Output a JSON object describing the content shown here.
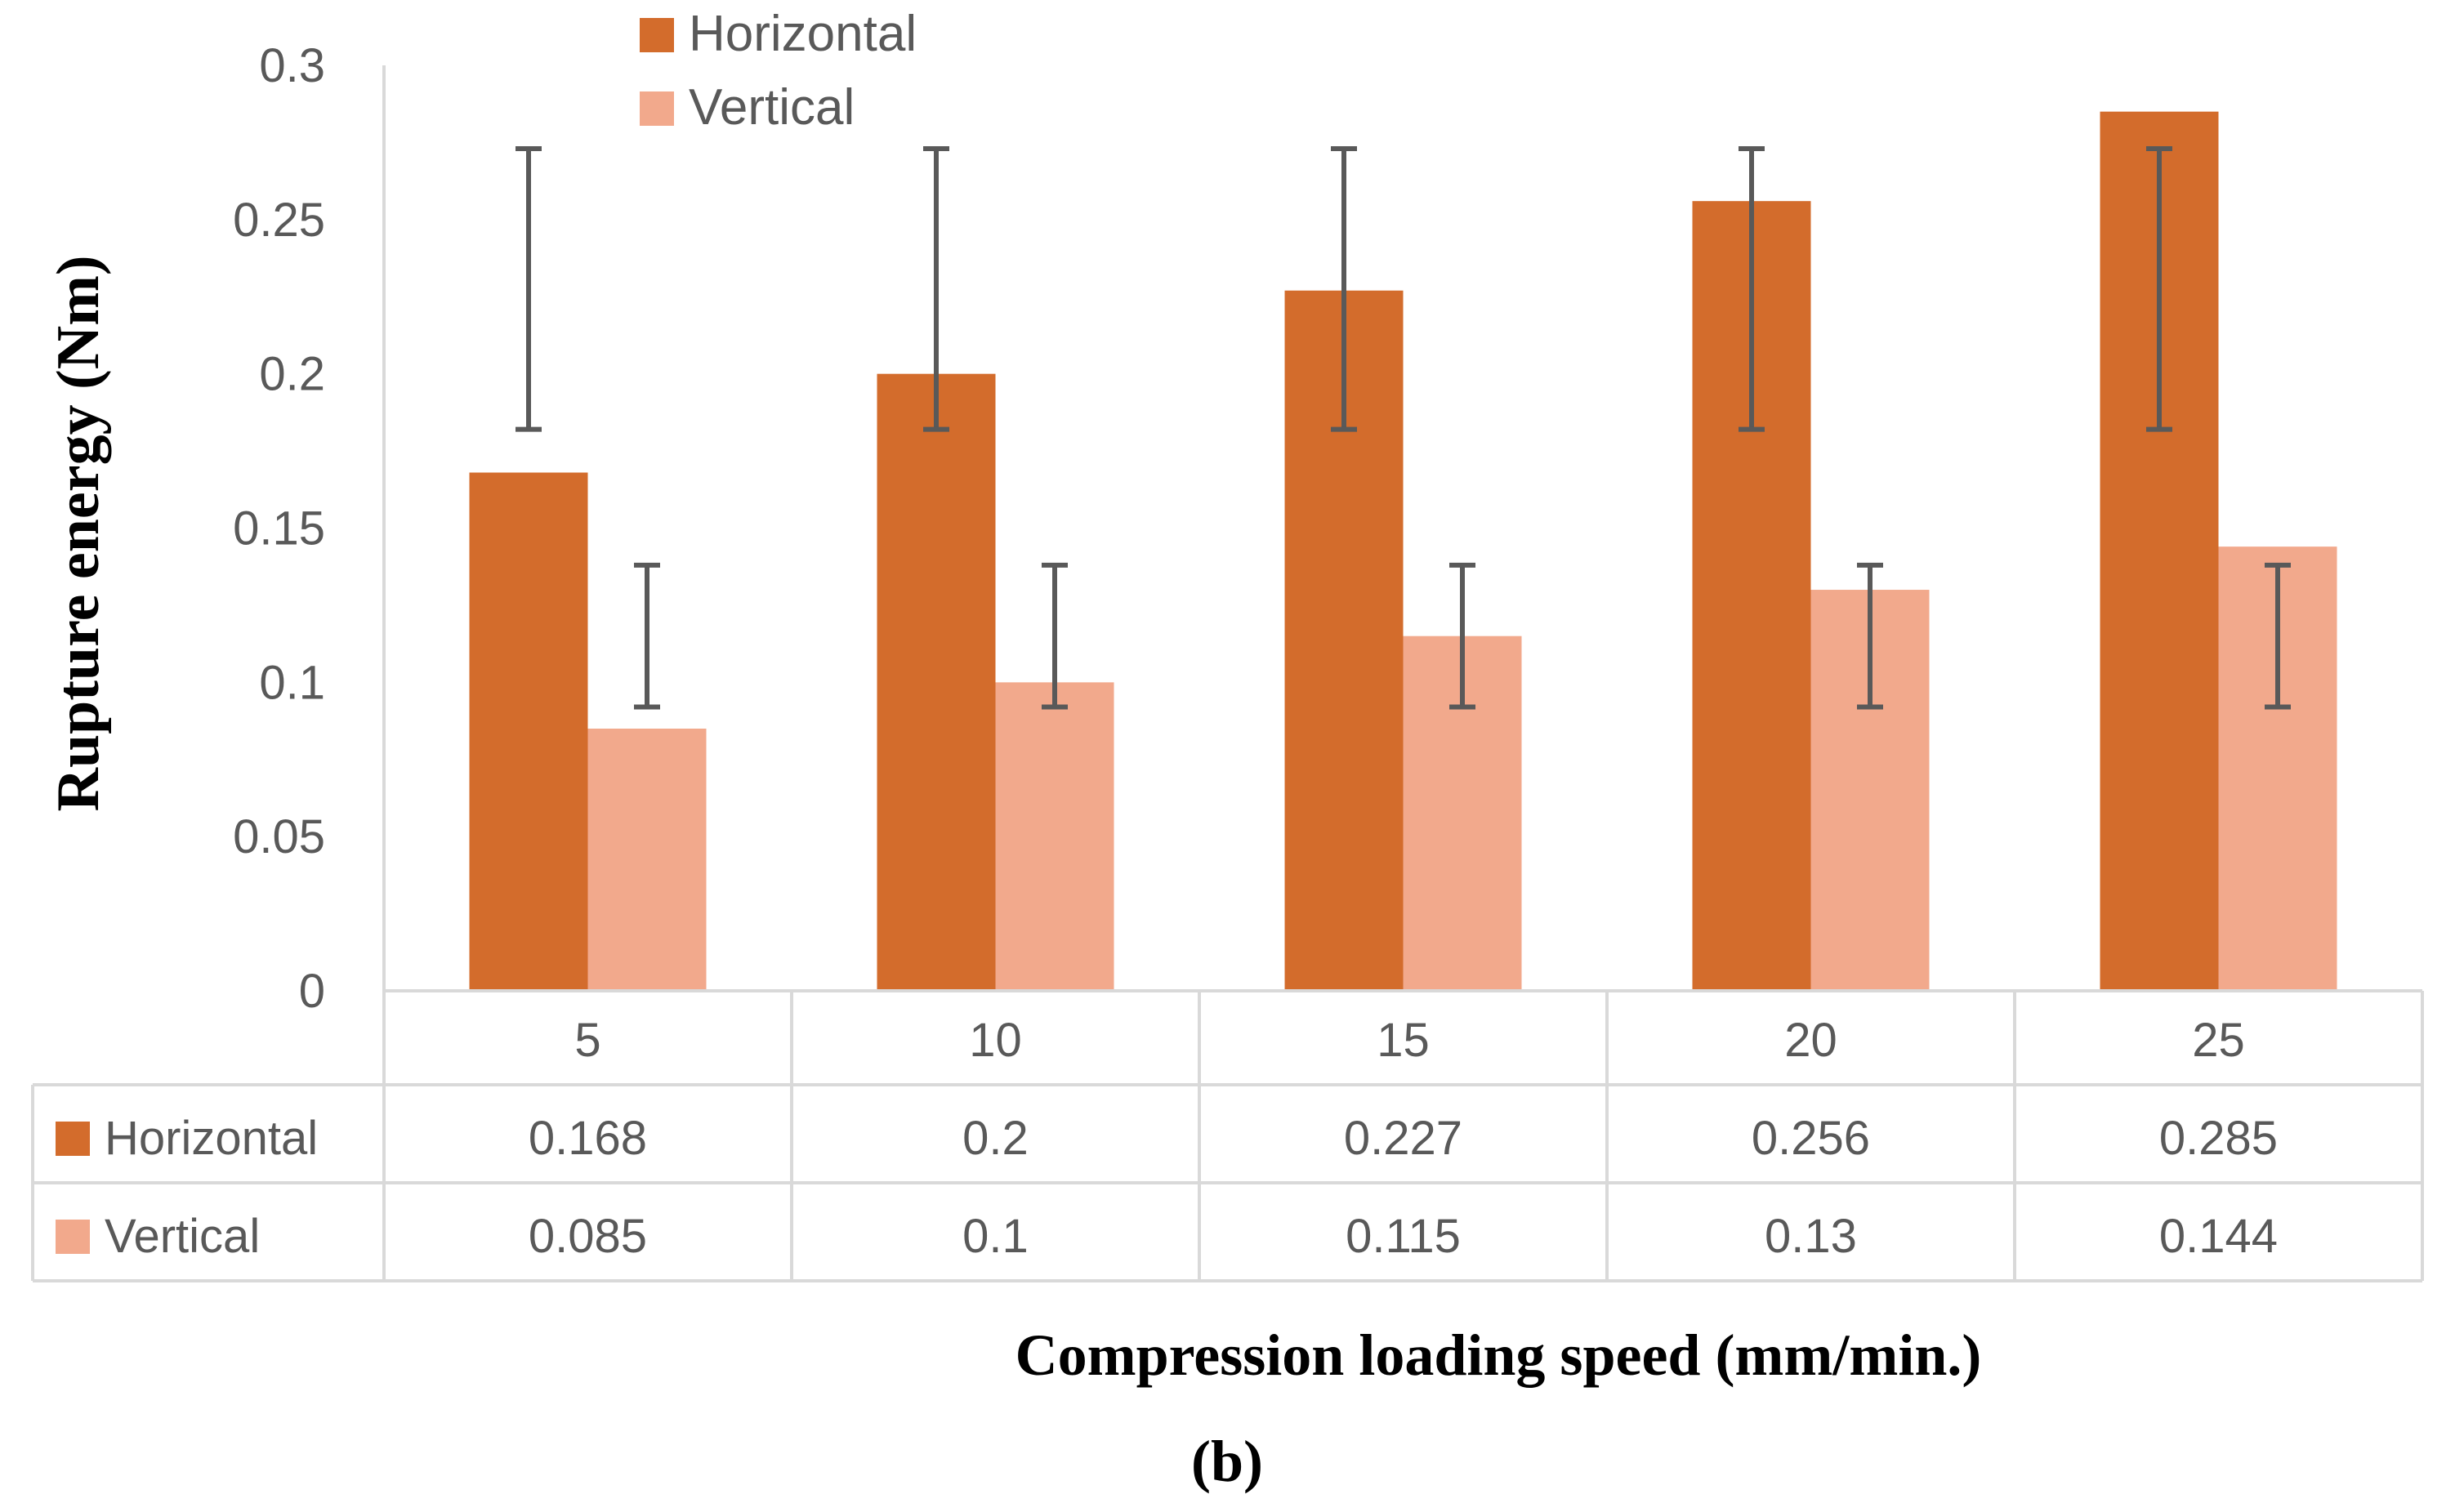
{
  "chart_data": {
    "type": "bar",
    "categories": [
      "5",
      "10",
      "15",
      "20",
      "25"
    ],
    "series": [
      {
        "name": "Horizontal",
        "color": "#D36C2C",
        "values": [
          0.168,
          0.2,
          0.227,
          0.256,
          0.285
        ],
        "value_labels": [
          "0.168",
          "0.2",
          "0.227",
          "0.256",
          "0.285"
        ],
        "error_range": [
          0.182,
          0.273
        ]
      },
      {
        "name": "Vertical",
        "color": "#F2A98C",
        "values": [
          0.085,
          0.1,
          0.115,
          0.13,
          0.144
        ],
        "value_labels": [
          "0.085",
          "0.1",
          "0.115",
          "0.13",
          "0.144"
        ],
        "error_range": [
          0.092,
          0.138
        ]
      }
    ],
    "ylabel": "Rupture energy (Nm)",
    "xlabel": "Compression loading speed (mm/min.)",
    "ylim": [
      0,
      0.3
    ],
    "yticks": [
      "0",
      "0.05",
      "0.1",
      "0.15",
      "0.2",
      "0.25",
      "0.3"
    ],
    "legend_position": "top",
    "data_table": true,
    "grid": false
  },
  "caption": "(b)",
  "colors": {
    "error_bar": "#595959",
    "axis": "#D9D9D9",
    "text": "#595959"
  }
}
